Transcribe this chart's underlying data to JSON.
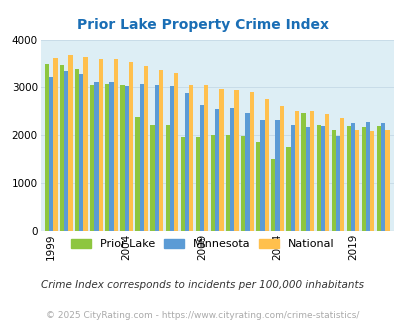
{
  "title": "Prior Lake Property Crime Index",
  "years": [
    1999,
    2000,
    2001,
    2002,
    2003,
    2004,
    2005,
    2006,
    2007,
    2008,
    2009,
    2010,
    2011,
    2012,
    2013,
    2014,
    2015,
    2016,
    2017,
    2018,
    2019,
    2020,
    2021
  ],
  "prior_lake": [
    3490,
    3460,
    3390,
    3060,
    3070,
    3050,
    2380,
    2220,
    2220,
    1970,
    1960,
    2010,
    2000,
    1990,
    1850,
    1500,
    1760,
    2460,
    2210,
    2110,
    2190,
    2180,
    2190
  ],
  "minnesota": [
    3210,
    3340,
    3290,
    3110,
    3110,
    3020,
    3070,
    3060,
    3030,
    2880,
    2640,
    2560,
    2580,
    2460,
    2320,
    2330,
    2220,
    2180,
    2200,
    1990,
    2260,
    2270,
    2250
  ],
  "national": [
    3620,
    3670,
    3640,
    3600,
    3590,
    3530,
    3450,
    3370,
    3310,
    3060,
    3050,
    2970,
    2950,
    2900,
    2750,
    2620,
    2510,
    2500,
    2450,
    2370,
    2120,
    2090,
    2110
  ],
  "prior_lake_color": "#8dc63f",
  "minnesota_color": "#5b9bd5",
  "national_color": "#ffc04d",
  "background_color": "#ddeef5",
  "ylim": [
    0,
    4000
  ],
  "yticks": [
    0,
    1000,
    2000,
    3000,
    4000
  ],
  "xtick_year_labels": [
    "1999",
    "2004",
    "2009",
    "2014",
    "2019"
  ],
  "xtick_year_positions": [
    0,
    5,
    10,
    15,
    20
  ],
  "title_color": "#1a6eb5",
  "title_fontsize": 10,
  "subtitle": "Crime Index corresponds to incidents per 100,000 inhabitants",
  "footer": "© 2025 CityRating.com - https://www.cityrating.com/crime-statistics/",
  "legend_labels": [
    "Prior Lake",
    "Minnesota",
    "National"
  ],
  "bar_width": 0.28,
  "grid_color": "#c8dce8"
}
